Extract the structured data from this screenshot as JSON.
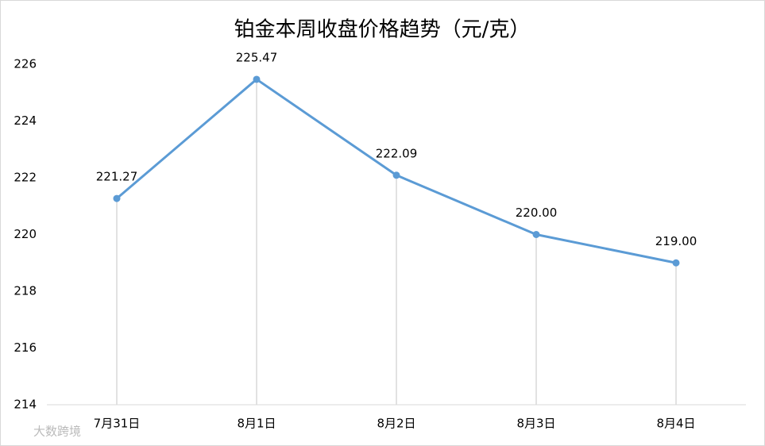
{
  "chart_data": {
    "type": "line",
    "title": "铂金本周收盘价格趋势（元/克）",
    "categories": [
      "7月31日",
      "8月1日",
      "8月2日",
      "8月3日",
      "8月4日"
    ],
    "values": [
      221.27,
      225.47,
      222.09,
      220.0,
      219.0
    ],
    "value_labels": [
      "221.27",
      "225.47",
      "222.09",
      "220.00",
      "219.00"
    ],
    "color": "#5b9bd5",
    "ylim": [
      214,
      226
    ],
    "yticks": [
      214,
      216,
      218,
      220,
      222,
      224,
      226
    ],
    "drop_lines": true,
    "watermark": "大数跨境"
  }
}
